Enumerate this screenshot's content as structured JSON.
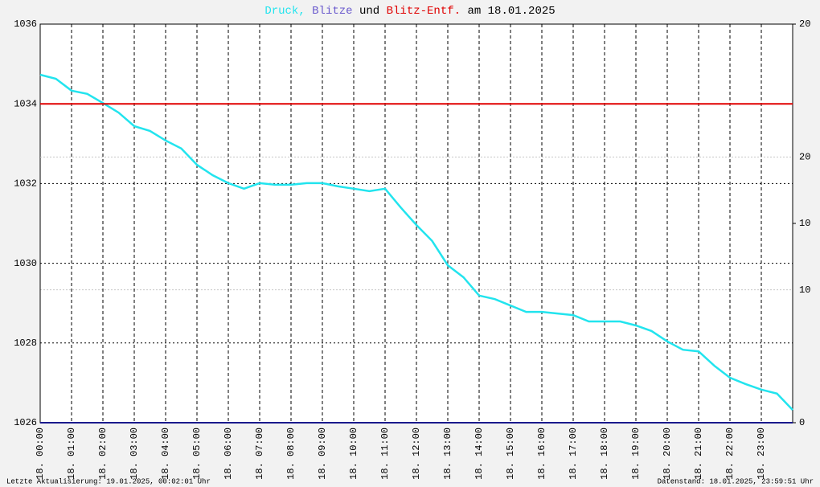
{
  "chart_data": {
    "type": "line",
    "title_parts": [
      {
        "text": "Druck,",
        "color": "#22e4ee"
      },
      {
        "text": "Blitze",
        "color": "#6a5acd"
      },
      {
        "text": "und",
        "color": "#000000"
      },
      {
        "text": "Blitz-Entf.",
        "color": "#e00000"
      },
      {
        "text": "am 18.01.2025",
        "color": "#000000"
      }
    ],
    "xlim": [
      0,
      24
    ],
    "xticks": [
      {
        "value": 0,
        "label": "18. 00:00"
      },
      {
        "value": 1,
        "label": "18. 01:00"
      },
      {
        "value": 2,
        "label": "18. 02:00"
      },
      {
        "value": 3,
        "label": "18. 03:00"
      },
      {
        "value": 4,
        "label": "18. 04:00"
      },
      {
        "value": 5,
        "label": "18. 05:00"
      },
      {
        "value": 6,
        "label": "18. 06:00"
      },
      {
        "value": 7,
        "label": "18. 07:00"
      },
      {
        "value": 8,
        "label": "18. 08:00"
      },
      {
        "value": 9,
        "label": "18. 09:00"
      },
      {
        "value": 10,
        "label": "18. 10:00"
      },
      {
        "value": 11,
        "label": "18. 11:00"
      },
      {
        "value": 12,
        "label": "18. 12:00"
      },
      {
        "value": 13,
        "label": "18. 13:00"
      },
      {
        "value": 14,
        "label": "18. 14:00"
      },
      {
        "value": 15,
        "label": "18. 15:00"
      },
      {
        "value": 16,
        "label": "18. 16:00"
      },
      {
        "value": 17,
        "label": "18. 17:00"
      },
      {
        "value": 18,
        "label": "18. 18:00"
      },
      {
        "value": 19,
        "label": "18. 19:00"
      },
      {
        "value": 20,
        "label": "18. 20:00"
      },
      {
        "value": 21,
        "label": "18. 21:00"
      },
      {
        "value": 22,
        "label": "18. 22:00"
      },
      {
        "value": 23,
        "label": "18. 23:00"
      }
    ],
    "ylim": [
      1026,
      1036
    ],
    "yticks": [
      1026,
      1028,
      1030,
      1032,
      1034,
      1036
    ],
    "y2lim": [
      0,
      20
    ],
    "y2ticks": [
      0,
      10,
      20
    ],
    "y3lim": [
      0,
      30
    ],
    "y3ticks": [
      10,
      20
    ],
    "y3color": "#e00000",
    "grid": true,
    "series": [
      {
        "color": "#22e4ee",
        "x": [
          0,
          0.5,
          1,
          1.5,
          2,
          2.5,
          3,
          3.5,
          4,
          4.5,
          5,
          5.5,
          6,
          6.5,
          7,
          7.5,
          8,
          8.5,
          9,
          9.5,
          10,
          10.5,
          11,
          11.5,
          12,
          12.5,
          13,
          13.5,
          14,
          14.5,
          15,
          15.5,
          16,
          16.5,
          17,
          17.5,
          18,
          18.5,
          19,
          19.5,
          20,
          20.5,
          21,
          21.5,
          22,
          22.5,
          23,
          23.5,
          24
        ],
        "values": [
          1034.73,
          1034.63,
          1034.33,
          1034.25,
          1034.02,
          1033.78,
          1033.44,
          1033.32,
          1033.08,
          1032.88,
          1032.47,
          1032.21,
          1032.01,
          1031.87,
          1032.01,
          1031.97,
          1031.97,
          1032.01,
          1032.01,
          1031.93,
          1031.87,
          1031.81,
          1031.87,
          1031.4,
          1030.96,
          1030.56,
          1029.95,
          1029.65,
          1029.19,
          1029.1,
          1028.94,
          1028.78,
          1028.78,
          1028.74,
          1028.7,
          1028.54,
          1028.54,
          1028.54,
          1028.44,
          1028.3,
          1028.04,
          1027.83,
          1027.79,
          1027.43,
          1027.13,
          1026.97,
          1026.83,
          1026.73,
          1026.32
        ]
      },
      {
        "color": "#1a1a8c",
        "axis": "y2",
        "x": [
          0,
          24
        ],
        "values": [
          0,
          0
        ]
      },
      {
        "color": "#e00000",
        "axis": "y3",
        "x": [
          0,
          24
        ],
        "values": [
          24,
          24
        ]
      }
    ]
  },
  "footer": {
    "left": "Letzte Aktualisierung: 19.01.2025, 00:02:01 Uhr",
    "right": "Datenstand: 18.01.2025, 23:59:51 Uhr"
  }
}
